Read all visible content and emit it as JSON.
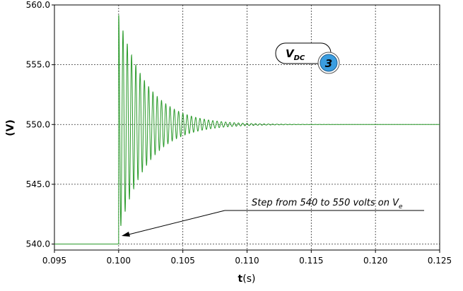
{
  "chart_data": {
    "type": "line",
    "title": "",
    "xlabel": {
      "bold": "t",
      "rest": "(s)"
    },
    "ylabel": "(V)",
    "xlim": [
      0.095,
      0.125
    ],
    "ylim": [
      539.5,
      560.0
    ],
    "xticks": [
      "0.095",
      "0.100",
      "0.105",
      "0.110",
      "0.115",
      "0.120",
      "0.125"
    ],
    "yticks": [
      "540.0",
      "545.0",
      "550.0",
      "555.0",
      "560.0"
    ],
    "grid": true,
    "series": [
      {
        "color": "#2a9a2a",
        "model": "damped_oscillation",
        "pre_step_value": 540.0,
        "step_time": 0.1,
        "final_value": 550.0,
        "first_peak": 559.2,
        "first_trough": 541.6,
        "oscillation_period": 0.000333,
        "decay_time_constant": 0.0022,
        "x": [
          0.095,
          0.1,
          0.1002,
          0.1003,
          0.101,
          0.102,
          0.103,
          0.104,
          0.105,
          0.106,
          0.108,
          0.11,
          0.125
        ],
        "y": [
          540.0,
          540.0,
          559.2,
          541.6,
          556.5,
          554.0,
          552.6,
          551.5,
          550.9,
          550.5,
          550.1,
          550.0,
          550.0
        ]
      }
    ],
    "annotations": [
      {
        "text": "Step from 540 to 550 volts on V",
        "subscript": "e",
        "arrow_to": [
          0.1,
          540.0
        ]
      }
    ],
    "label_bubble": {
      "text": "V",
      "subscript": "DC",
      "badge": "3"
    }
  }
}
